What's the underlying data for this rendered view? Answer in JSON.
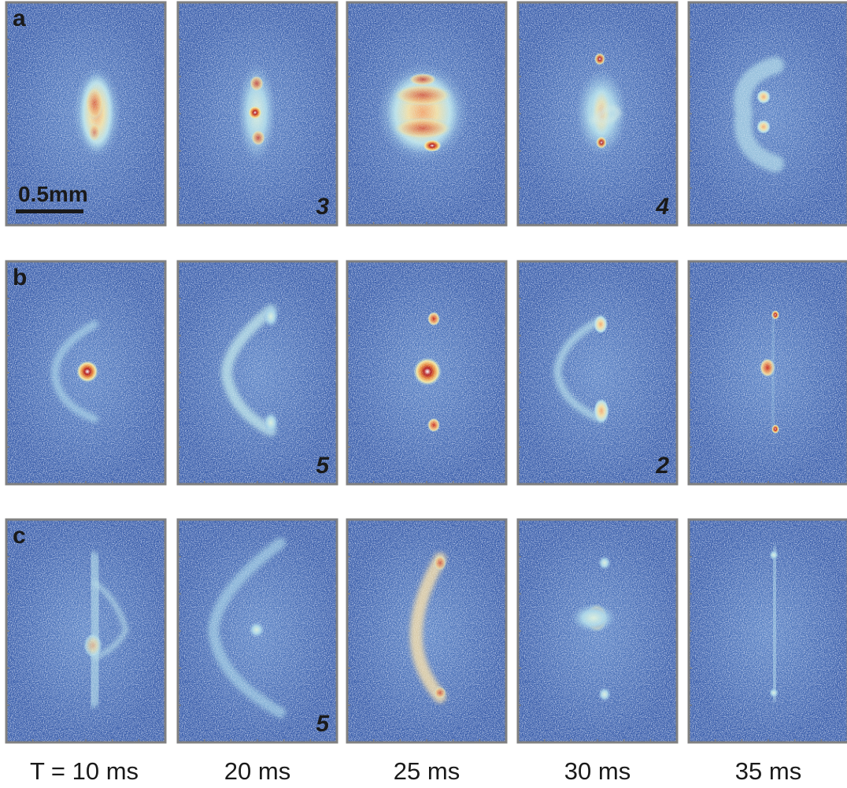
{
  "scale_bar": "0.5mm",
  "rows": [
    {
      "label": "a",
      "panels": [
        {},
        {
          "number": 3
        },
        {},
        {
          "number": 4
        },
        {}
      ]
    },
    {
      "label": "b",
      "panels": [
        {},
        {
          "number": 5
        },
        {},
        {
          "number": 2
        },
        {}
      ]
    },
    {
      "label": "c",
      "panels": [
        {},
        {
          "number": 5
        },
        {},
        {},
        {}
      ]
    }
  ],
  "columns": [
    "T = 10 ms",
    "20 ms",
    "25 ms",
    "30 ms",
    "35 ms"
  ]
}
